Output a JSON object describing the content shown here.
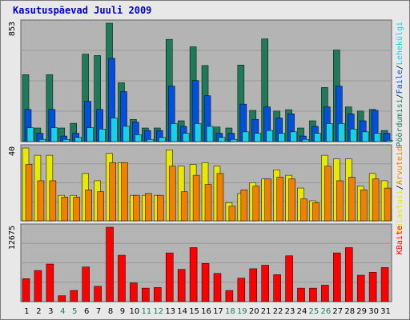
{
  "title": "Kasutuspäevad Juuli 2009",
  "colors": {
    "background": "#e8e8e8",
    "plot_bg": "#b4b4b4",
    "grid": "#9a9a9a",
    "title": "#0000c8",
    "day_default": "#000000",
    "day_weekend": "#1f7a5a"
  },
  "axis_labels": {
    "top_max": "853",
    "middle_max": "40",
    "bottom_max": "12675"
  },
  "side_legends": {
    "top": [
      {
        "text": "Pöördumisi",
        "color": "#1f7a5a"
      },
      {
        "text": "/",
        "color": "#000000"
      },
      {
        "text": "Faile",
        "color": "#0050e0"
      },
      {
        "text": "/",
        "color": "#000000"
      },
      {
        "text": "Lehekülgi",
        "color": "#18d0e8"
      }
    ],
    "middle": [
      {
        "text": "Külastusi",
        "color": "#e8e800"
      },
      {
        "text": "/",
        "color": "#000000"
      },
      {
        "text": "Arvuteid",
        "color": "#f08000"
      }
    ],
    "bottom": [
      {
        "text": "KBaite",
        "color": "#ff0000"
      }
    ]
  },
  "chart_data": {
    "type": "bar",
    "categories": [
      "1",
      "2",
      "3",
      "4",
      "5",
      "6",
      "7",
      "8",
      "9",
      "10",
      "11",
      "12",
      "13",
      "14",
      "15",
      "16",
      "17",
      "18",
      "19",
      "20",
      "21",
      "22",
      "23",
      "24",
      "25",
      "26",
      "27",
      "28",
      "29",
      "30",
      "31"
    ],
    "weekend_days": [
      "4",
      "5",
      "11",
      "12",
      "18",
      "19",
      "25",
      "26"
    ],
    "panels": [
      {
        "name": "top",
        "ylim": [
          0,
          853
        ],
        "series": [
          {
            "name": "Pöördumisi",
            "color": "#1f7a5a",
            "values": [
              482,
              98,
              482,
              98,
              132,
              630,
              620,
              853,
              424,
              160,
              98,
              98,
              737,
              150,
              683,
              548,
              105,
              98,
              552,
              225,
              740,
              220,
              230,
              98,
              150,
              390,
              660,
              250,
              220,
              232,
              80
            ]
          },
          {
            "name": "Faile",
            "color": "#0050e0",
            "values": [
              232,
              60,
              232,
              40,
              60,
              290,
              232,
              600,
              360,
              140,
              80,
              80,
              400,
              110,
              440,
              330,
              60,
              60,
              270,
              160,
              250,
              170,
              200,
              40,
              110,
              250,
              400,
              200,
              150,
              225,
              60
            ]
          },
          {
            "name": "Lehekülgi",
            "color": "#18d0e8",
            "values": [
              100,
              16,
              100,
              16,
              30,
              100,
              90,
              170,
              110,
              50,
              16,
              30,
              130,
              60,
              130,
              110,
              30,
              16,
              70,
              60,
              80,
              60,
              70,
              16,
              60,
              130,
              130,
              90,
              70,
              60,
              10
            ]
          }
        ]
      },
      {
        "name": "middle",
        "ylim": [
          0,
          40
        ],
        "series": [
          {
            "name": "Külastusi",
            "color": "#e8e800",
            "values": [
              40,
              36,
              36,
              14,
              14,
              26,
              22,
              37,
              32,
              14,
              14,
              14,
              39,
              30,
              31,
              32,
              30,
              10,
              15,
              21,
              23,
              28,
              25,
              18,
              11,
              36,
              34,
              34,
              19,
              26,
              22
            ]
          },
          {
            "name": "Arvuteid",
            "color": "#f08000",
            "values": [
              31,
              22,
              22,
              13,
              13,
              17,
              16,
              32,
              32,
              14,
              15,
              14,
              30,
              16,
              25,
              20,
              26,
              8,
              17,
              19,
              23,
              24,
              23,
              12,
              10,
              30,
              22,
              24,
              17,
              23,
              18
            ]
          }
        ]
      },
      {
        "name": "bottom",
        "ylim": [
          0,
          12675
        ],
        "series": [
          {
            "name": "KBaite",
            "color": "#ff0000",
            "values": [
              3900,
              5300,
              6400,
              1000,
              1900,
              5900,
              2600,
              12675,
              7900,
              3200,
              2300,
              2400,
              8300,
              5500,
              9200,
              6500,
              4800,
              1900,
              4000,
              5600,
              6200,
              4600,
              7800,
              2300,
              2300,
              2800,
              8300,
              9200,
              4500,
              5000,
              5800
            ]
          }
        ]
      }
    ]
  }
}
